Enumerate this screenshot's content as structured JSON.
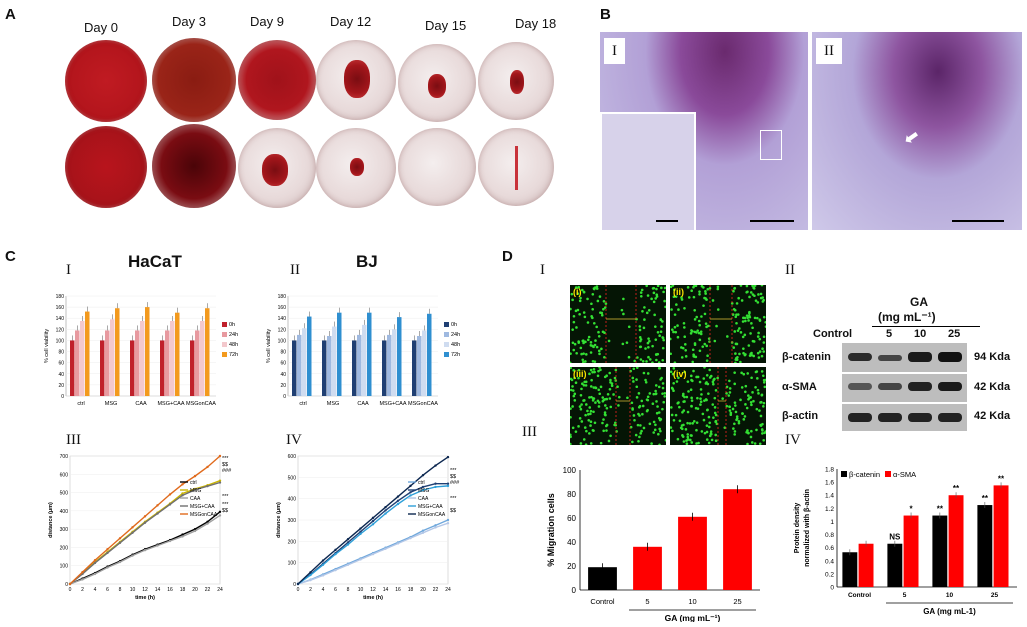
{
  "panels": {
    "A": {
      "letter": "A",
      "days": [
        "Day 0",
        "Day 3",
        "Day 9",
        "Day 12",
        "Day 15",
        "Day 18"
      ]
    },
    "B": {
      "letter": "B",
      "sub": [
        "I",
        "II"
      ]
    },
    "C": {
      "letter": "C",
      "sub": [
        "I",
        "II",
        "III",
        "IV"
      ],
      "titles": [
        "HaCaT",
        "BJ"
      ]
    },
    "D": {
      "letter": "D",
      "sub": [
        "I",
        "II",
        "III",
        "IV"
      ],
      "scratch_labels": [
        "(i)",
        "(ii)",
        "(iii)",
        "(iv)"
      ]
    }
  },
  "western": {
    "title": "GA",
    "unit": "(mg mL⁻¹)",
    "lanes": [
      "Control",
      "5",
      "10",
      "25"
    ],
    "rows": [
      {
        "label": "β-catenin",
        "size": "94 Kda"
      },
      {
        "label": "α-SMA",
        "size": "42 Kda"
      },
      {
        "label": "β-actin",
        "size": "42 Kda"
      }
    ]
  },
  "colors": {
    "red": "#ff0000",
    "black": "#000000",
    "hacat": [
      "#c0202b",
      "#e89aa0",
      "#f3c8cc",
      "#f39a1e"
    ],
    "bj": [
      "#1f3f73",
      "#9fb9e0",
      "#cfdcf0",
      "#2f8fd0"
    ]
  },
  "chart_data": [
    {
      "id": "C-I",
      "type": "bar",
      "title": "HaCaT",
      "ylabel": "% cell viability",
      "ylim": [
        0,
        180
      ],
      "yticks": [
        0,
        20,
        40,
        60,
        80,
        100,
        120,
        140,
        160,
        180
      ],
      "categories": [
        "ctrl",
        "MSG",
        "CAA",
        "MSG+CAA",
        "MSGonCAA"
      ],
      "series": [
        {
          "name": "0h",
          "values": [
            100,
            100,
            100,
            100,
            100
          ]
        },
        {
          "name": "24h",
          "values": [
            118,
            118,
            118,
            118,
            118
          ]
        },
        {
          "name": "48h",
          "values": [
            135,
            138,
            135,
            135,
            135
          ]
        },
        {
          "name": "72h",
          "values": [
            152,
            158,
            160,
            150,
            158
          ]
        }
      ]
    },
    {
      "id": "C-II",
      "type": "bar",
      "title": "BJ",
      "ylabel": "% cell viability",
      "ylim": [
        0,
        180
      ],
      "yticks": [
        0,
        20,
        40,
        60,
        80,
        100,
        120,
        140,
        160,
        180
      ],
      "categories": [
        "ctrl",
        "MSG",
        "CAA",
        "MSG+CAA",
        "MSGonCAA"
      ],
      "series": [
        {
          "name": "0h",
          "values": [
            100,
            100,
            100,
            100,
            100
          ]
        },
        {
          "name": "24h",
          "values": [
            110,
            108,
            110,
            110,
            108
          ]
        },
        {
          "name": "48h",
          "values": [
            122,
            125,
            128,
            120,
            118
          ]
        },
        {
          "name": "72h",
          "values": [
            143,
            150,
            150,
            142,
            148
          ]
        }
      ]
    },
    {
      "id": "C-III",
      "type": "line",
      "xlabel": "time (h)",
      "ylabel": "distance (μm)",
      "xlim": [
        0,
        24
      ],
      "ylim": [
        0,
        700
      ],
      "xticks": [
        0,
        2,
        4,
        6,
        8,
        10,
        12,
        14,
        16,
        18,
        20,
        22,
        24
      ],
      "yticks": [
        0,
        100,
        200,
        300,
        400,
        500,
        600,
        700
      ],
      "x": [
        0,
        2,
        4,
        6,
        8,
        10,
        12,
        14,
        16,
        18,
        20,
        22,
        24
      ],
      "series": [
        {
          "name": "ctrl",
          "color": "#000000",
          "values": [
            0,
            30,
            60,
            95,
            125,
            160,
            190,
            215,
            240,
            270,
            300,
            340,
            395
          ]
        },
        {
          "name": "MSG",
          "color": "#c9b400",
          "values": [
            0,
            60,
            120,
            175,
            230,
            285,
            340,
            390,
            440,
            495,
            520,
            540,
            565
          ]
        },
        {
          "name": "CAA",
          "color": "#a0a0a0",
          "values": [
            0,
            25,
            55,
            90,
            120,
            155,
            185,
            210,
            235,
            260,
            290,
            330,
            375
          ]
        },
        {
          "name": "MSG+CAA",
          "color": "#707070",
          "values": [
            0,
            55,
            115,
            170,
            225,
            280,
            335,
            385,
            435,
            485,
            515,
            535,
            555
          ]
        },
        {
          "name": "MSGonCAA",
          "color": "#e06a1c",
          "values": [
            0,
            65,
            130,
            190,
            250,
            310,
            370,
            430,
            490,
            545,
            590,
            640,
            700
          ]
        }
      ],
      "annotations": [
        "***",
        "$$",
        "###",
        "***",
        "***",
        "$$"
      ]
    },
    {
      "id": "C-IV",
      "type": "line",
      "xlabel": "time (h)",
      "ylabel": "distance (μm)",
      "xlim": [
        0,
        24
      ],
      "ylim": [
        0,
        600
      ],
      "xticks": [
        0,
        2,
        4,
        6,
        8,
        10,
        12,
        14,
        16,
        18,
        20,
        22,
        24
      ],
      "yticks": [
        0,
        100,
        200,
        300,
        400,
        500,
        600
      ],
      "x": [
        0,
        2,
        4,
        6,
        8,
        10,
        12,
        14,
        16,
        18,
        20,
        22,
        24
      ],
      "series": [
        {
          "name": "ctrl",
          "color": "#6fa8dc",
          "values": [
            0,
            20,
            45,
            70,
            95,
            120,
            145,
            170,
            195,
            220,
            250,
            275,
            300
          ]
        },
        {
          "name": "MSG",
          "color": "#1f3f73",
          "values": [
            0,
            45,
            95,
            145,
            195,
            245,
            295,
            345,
            390,
            430,
            455,
            470,
            470
          ]
        },
        {
          "name": "CAA",
          "color": "#b4c7e7",
          "values": [
            0,
            18,
            40,
            65,
            90,
            115,
            140,
            165,
            190,
            215,
            240,
            265,
            285
          ]
        },
        {
          "name": "MSG+CAA",
          "color": "#2e9fd8",
          "values": [
            0,
            42,
            90,
            140,
            185,
            235,
            280,
            330,
            375,
            415,
            440,
            455,
            460
          ]
        },
        {
          "name": "MSGonCAA",
          "color": "#0c2750",
          "values": [
            0,
            55,
            110,
            160,
            210,
            260,
            310,
            360,
            410,
            460,
            510,
            555,
            595
          ]
        }
      ],
      "annotations": [
        "***",
        "$$",
        "###",
        "***",
        "$$"
      ]
    },
    {
      "id": "D-III",
      "type": "bar",
      "ylabel": "% Migration cells",
      "xlabel": "GA  (mg mL⁻¹)",
      "ylim": [
        0,
        100
      ],
      "yticks": [
        0,
        20,
        40,
        60,
        80,
        100
      ],
      "categories": [
        "Control",
        "5",
        "10",
        "25"
      ],
      "values": [
        19,
        36,
        61,
        84
      ],
      "colors": [
        "#000000",
        "#ff0000",
        "#ff0000",
        "#ff0000"
      ]
    },
    {
      "id": "D-IV",
      "type": "bar",
      "ylabel": "Protein density normalized with β-actin",
      "xlabel": "GA (mg mL-1)",
      "ylim": [
        0,
        1.8
      ],
      "yticks": [
        "0",
        "0.2",
        "0.4",
        "0.6",
        "0.8",
        "1",
        "1.2",
        "1.4",
        "1.6",
        "1.8"
      ],
      "categories": [
        "Control",
        "5",
        "10",
        "25"
      ],
      "series": [
        {
          "name": "β-catenin",
          "color": "#000000",
          "values": [
            0.53,
            0.66,
            1.09,
            1.25
          ],
          "marks": [
            "",
            "NS",
            "**",
            "**"
          ]
        },
        {
          "name": "α-SMA",
          "color": "#ff0000",
          "values": [
            0.66,
            1.09,
            1.4,
            1.55
          ],
          "marks": [
            "",
            "*",
            "**",
            "**"
          ]
        }
      ]
    }
  ]
}
